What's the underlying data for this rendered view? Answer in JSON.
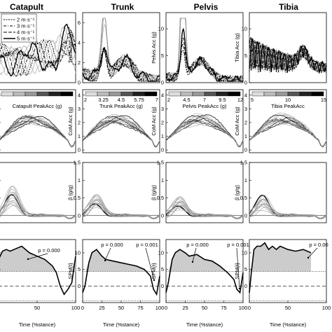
{
  "chart_data": {
    "type": "line",
    "columns": [
      {
        "title": "Catapult",
        "colorbar_label": "Catapult PeakAcc (g)",
        "colorbar_ticks": [],
        "row1_ylabel": "",
        "row1_yticks": []
      },
      {
        "title": "Trunk",
        "colorbar_label": "Trunk PeakAcc (g)",
        "colorbar_ticks": [
          "2",
          "3.25",
          "4.5",
          "5.75",
          "7"
        ],
        "row1_ylabel": "Trunk Acc (g)",
        "row1_yticks": [
          "0",
          "2",
          "4",
          "6"
        ]
      },
      {
        "title": "Pelvis",
        "colorbar_label": "Pelvis PeakAcc (g)",
        "colorbar_ticks": [
          "2",
          "4.5",
          "7",
          "9.5",
          "12"
        ],
        "row1_ylabel": "Pelvis Acc (g)",
        "row1_yticks": [
          "0",
          "5",
          "10"
        ]
      },
      {
        "title": "Tibia",
        "colorbar_label": "Tibia PeakAcc",
        "colorbar_ticks": [
          "5",
          "10",
          "15"
        ],
        "row1_ylabel": "Tibia Acc (g)",
        "row1_yticks": [
          "0",
          "5",
          "10"
        ]
      }
    ],
    "legend": {
      "placement": "top-left",
      "entries": [
        "2 m·s⁻¹",
        "3 m·s⁻¹",
        "4 m·s⁻¹",
        "5 m·s⁻¹"
      ]
    },
    "row2": {
      "ylabel": "CoM Acc (g)",
      "yticks": [
        "0",
        "1",
        "2",
        "3",
        "4"
      ]
    },
    "row3": {
      "ylabel": "β (g/g)",
      "yticks": [
        "0",
        "0.5",
        "1",
        "1.5"
      ]
    },
    "row4": {
      "ylabel": "SPM{t}",
      "yticks": [
        "0",
        "5",
        "10"
      ],
      "xticks": [
        "0",
        "50",
        "100"
      ],
      "xticks_sparse": [
        "0",
        "25",
        "50",
        "75",
        "100"
      ],
      "xlabel": "Time (%stance)",
      "threshold": 4.4,
      "spm_catapult": {
        "x": [
          0,
          5,
          10,
          15,
          20,
          30,
          40,
          50,
          60,
          70,
          75,
          80,
          85,
          90,
          95,
          100
        ],
        "y": [
          8,
          10.5,
          11,
          10.5,
          11,
          12,
          10,
          9,
          8,
          6,
          4,
          0,
          -2.5,
          -1,
          1,
          9
        ]
      },
      "spm_trunk": {
        "x": [
          0,
          3,
          8,
          12,
          18,
          25,
          30,
          40,
          50,
          60,
          70,
          80,
          88,
          92,
          96,
          100
        ],
        "y": [
          -2,
          0,
          7,
          10,
          11,
          9,
          8,
          7.5,
          7,
          6.5,
          6,
          5,
          3,
          -1,
          -2.5,
          3
        ]
      },
      "spm_pelvis": {
        "x": [
          0,
          3,
          8,
          12,
          18,
          25,
          30,
          40,
          50,
          60,
          70,
          80,
          88,
          92,
          96,
          100
        ],
        "y": [
          -2,
          1,
          8,
          10,
          11,
          10,
          9,
          9.5,
          8,
          7.5,
          6,
          4,
          2,
          -1,
          -2,
          4
        ]
      },
      "spm_tibia": {
        "x": [
          0,
          3,
          6,
          10,
          15,
          20,
          25,
          30,
          35,
          40,
          50,
          60,
          70,
          80
        ],
        "y": [
          -2,
          5,
          11,
          12,
          12,
          13,
          11,
          12,
          11,
          12,
          11,
          10.5,
          11,
          10
        ]
      },
      "annotations": {
        "catapult": [
          "p = 0.000"
        ],
        "trunk": [
          "p = 0.000",
          "p = 0.001"
        ],
        "pelvis": [
          "p = 0.000",
          "p = 0.001"
        ],
        "tibia": [
          "p = 0.00"
        ]
      }
    }
  }
}
